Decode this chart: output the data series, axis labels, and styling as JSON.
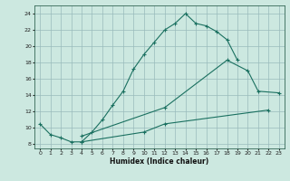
{
  "xlabel": "Humidex (Indice chaleur)",
  "xlim": [
    -0.5,
    23.5
  ],
  "ylim": [
    7.5,
    25.0
  ],
  "yticks": [
    8,
    10,
    12,
    14,
    16,
    18,
    20,
    22,
    24
  ],
  "xticks": [
    0,
    1,
    2,
    3,
    4,
    5,
    6,
    7,
    8,
    9,
    10,
    11,
    12,
    13,
    14,
    15,
    16,
    17,
    18,
    19,
    20,
    21,
    22,
    23
  ],
  "bg_color": "#cce8e0",
  "line_color": "#1a7060",
  "grid_color": "#99bbbb",
  "curve1_x": [
    0,
    1,
    2,
    3,
    4,
    5,
    6,
    7,
    8,
    9,
    10,
    11,
    12,
    13,
    14,
    15,
    16,
    17,
    18,
    19
  ],
  "curve1_y": [
    10.5,
    9.2,
    8.8,
    8.3,
    8.3,
    9.5,
    11.0,
    12.8,
    14.5,
    17.2,
    19.0,
    20.5,
    22.0,
    22.8,
    24.0,
    22.8,
    22.5,
    21.8,
    20.8,
    18.3
  ],
  "curve2_x": [
    4,
    12,
    18,
    20,
    21,
    23
  ],
  "curve2_y": [
    9.0,
    12.5,
    18.3,
    17.0,
    14.5,
    14.3
  ],
  "curve3_x": [
    4,
    10,
    12,
    22
  ],
  "curve3_y": [
    8.3,
    9.5,
    10.5,
    12.2
  ]
}
